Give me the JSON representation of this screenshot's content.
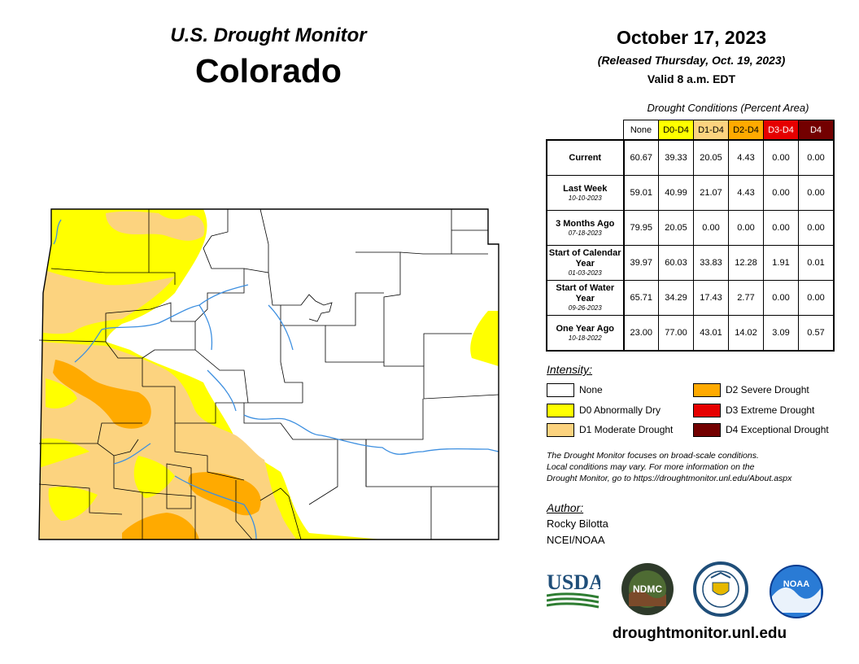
{
  "header": {
    "title": "U.S. Drought Monitor",
    "state": "Colorado",
    "date": "October 17, 2023",
    "released": "(Released Thursday, Oct. 19, 2023)",
    "valid": "Valid 8 a.m. EDT"
  },
  "table": {
    "caption": "Drought Conditions (Percent Area)",
    "columns": [
      {
        "label": "None",
        "color": "#ffffff",
        "text_color": "#000000"
      },
      {
        "label": "D0-D4",
        "color": "#ffff00",
        "text_color": "#000000"
      },
      {
        "label": "D1-D4",
        "color": "#fcd37f",
        "text_color": "#000000"
      },
      {
        "label": "D2-D4",
        "color": "#ffaa00",
        "text_color": "#000000"
      },
      {
        "label": "D3-D4",
        "color": "#e60000",
        "text_color": "#ffffff"
      },
      {
        "label": "D4",
        "color": "#730000",
        "text_color": "#ffffff"
      }
    ],
    "rows": [
      {
        "label": "Current",
        "date": "",
        "values": [
          "60.67",
          "39.33",
          "20.05",
          "4.43",
          "0.00",
          "0.00"
        ]
      },
      {
        "label": "Last Week",
        "date": "10-10-2023",
        "values": [
          "59.01",
          "40.99",
          "21.07",
          "4.43",
          "0.00",
          "0.00"
        ]
      },
      {
        "label": "3 Months Ago",
        "date": "07-18-2023",
        "values": [
          "79.95",
          "20.05",
          "0.00",
          "0.00",
          "0.00",
          "0.00"
        ]
      },
      {
        "label": "Start of Calendar Year",
        "date": "01-03-2023",
        "values": [
          "39.97",
          "60.03",
          "33.83",
          "12.28",
          "1.91",
          "0.01"
        ]
      },
      {
        "label": "Start of Water Year",
        "date": "09-26-2023",
        "values": [
          "65.71",
          "34.29",
          "17.43",
          "2.77",
          "0.00",
          "0.00"
        ]
      },
      {
        "label": "One Year Ago",
        "date": "10-18-2022",
        "values": [
          "23.00",
          "77.00",
          "43.01",
          "14.02",
          "3.09",
          "0.57"
        ]
      }
    ]
  },
  "legend": {
    "title": "Intensity:",
    "items": [
      {
        "label": "None",
        "color": "#ffffff"
      },
      {
        "label": "D0 Abnormally Dry",
        "color": "#ffff00"
      },
      {
        "label": "D1 Moderate Drought",
        "color": "#fcd37f"
      },
      {
        "label": "D2 Severe Drought",
        "color": "#ffaa00"
      },
      {
        "label": "D3 Extreme Drought",
        "color": "#e60000"
      },
      {
        "label": "D4 Exceptional Drought",
        "color": "#730000"
      }
    ]
  },
  "note": {
    "line1": "The Drought Monitor focuses on broad-scale conditions.",
    "line2": "Local conditions may vary. For more information on the",
    "line3": "Drought Monitor, go to https://droughtmonitor.unl.edu/About.aspx"
  },
  "author": {
    "title": "Author:",
    "name": "Rocky Bilotta",
    "org": "NCEI/NOAA"
  },
  "logos": {
    "usda": "USDA",
    "ndmc": "NDMC",
    "ndmc_ring": "NATIONAL DROUGHT MITIGATION CENTER",
    "noaa": "NOAA"
  },
  "url": "droughtmonitor.unl.edu",
  "map": {
    "colors": {
      "none": "#ffffff",
      "d0": "#ffff00",
      "d1": "#fcd37f",
      "d2": "#ffaa00",
      "river": "#3d8fe0",
      "border": "#000000"
    }
  }
}
